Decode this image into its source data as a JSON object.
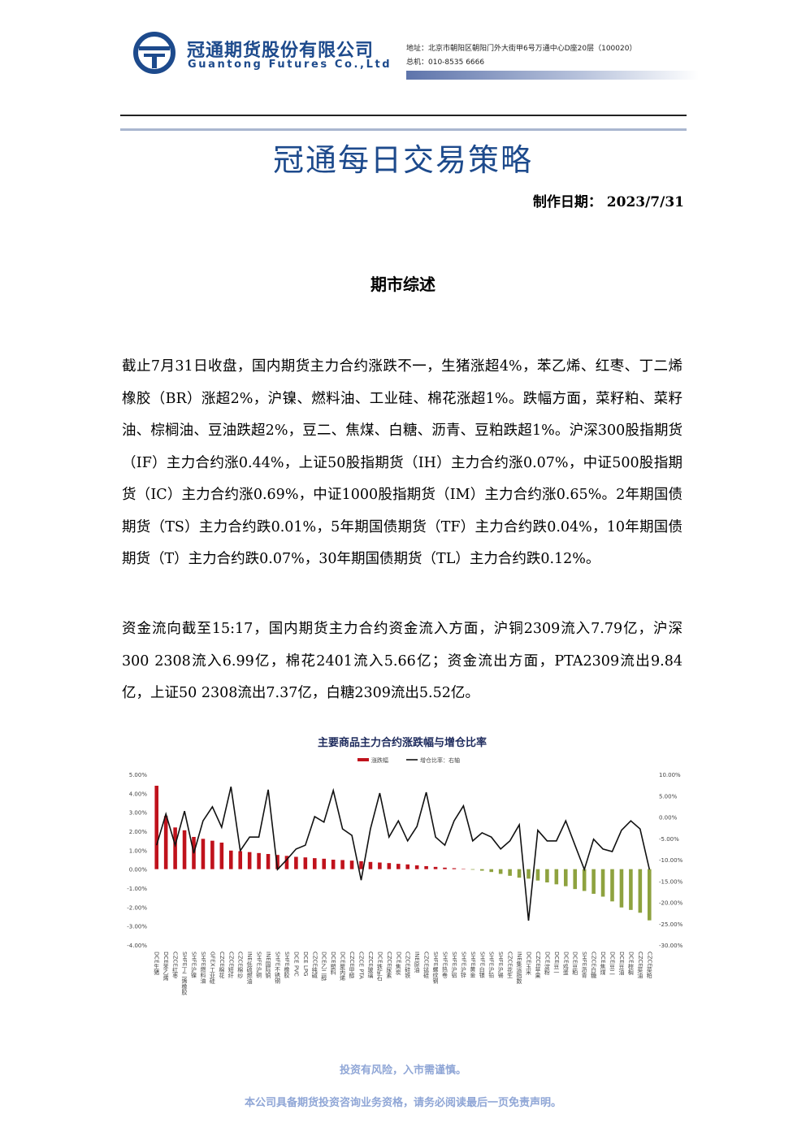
{
  "header": {
    "company_cn": "冠通期货股份有限公司",
    "company_en": "Guantong Futures Co.,Ltd",
    "address": "地址：北京市朝阳区朝阳门外大街甲6号万通中心D座20层（100020）",
    "phone": "总机：010-8535 6666"
  },
  "title": "冠通每日交易策略",
  "date_label": "制作日期：",
  "date": "2023/7/31",
  "section": "期市综述",
  "paragraphs": [
    "截止7月31日收盘，国内期货主力合约涨跌不一，生猪涨超4%，苯乙烯、红枣、丁二烯橡胶（BR）涨超2%，沪镍、燃料油、工业硅、棉花涨超1%。跌幅方面，菜籽粕、菜籽油、棕榈油、豆油跌超2%，豆二、焦煤、白糖、沥青、豆粕跌超1%。沪深300股指期货（IF）主力合约涨0.44%，上证50股指期货（IH）主力合约涨0.07%，中证500股指期货（IC）主力合约涨0.69%，中证1000股指期货（IM）主力合约涨0.65%。2年期国债期货（TS）主力合约跌0.01%，5年期国债期货（TF）主力合约跌0.04%，10年期国债期货（T）主力合约跌0.07%，30年期国债期货（TL）主力合约跌0.12%。",
    "资金流向截至15:17，国内期货主力合约资金流入方面，沪铜2309流入7.79亿，沪深300 2308流入6.99亿，棉花2401流入5.66亿；资金流出方面，PTA2309流出9.84亿，上证50 2308流出7.37亿，白糖2309流出5.52亿。"
  ],
  "chart_data": {
    "type": "bar-line",
    "title": "主要商品主力合约涨跌幅与增仓比率",
    "categories": [
      "DCE生猪",
      "DCE苯乙烯",
      "CZCE红枣",
      "SHFE丁二烯橡胶",
      "SHFE沪镍",
      "SHFE燃料油",
      "GFEX工业硅",
      "CZCE棉花",
      "CZCE短纤",
      "CZCE棉纱",
      "INE低硫燃油",
      "SHFE沪铜",
      "INE国际铜",
      "SHFE不锈钢",
      "SHFE橡胶",
      "DCE PVC",
      "DCE LPG",
      "CZCE纯碱",
      "DCE乙二醇",
      "DCE塑料",
      "DCE聚丙烯",
      "CZCE甲醇",
      "CZCE PTA",
      "CZCE玻璃",
      "DCE铁矿石",
      "CZCE尿素",
      "DCE焦炭",
      "CZCE硅铁",
      "INE原油",
      "CZCE锰硅",
      "SHFE螺纹钢",
      "SHFE热卷",
      "SHFE沪铝",
      "SHFE沪锌",
      "SHFE黄金",
      "SHFE白银",
      "SHFE沪铅",
      "SHFE沪锡",
      "CZCE花生",
      "INE集运指数",
      "DCE玉米",
      "CZCE苹果",
      "DCE淀粉",
      "DCE豆一",
      "DCE鸡蛋",
      "DCE豆粕",
      "SHFE沥青",
      "CZCE白糖",
      "DCE焦煤",
      "DCE豆二",
      "DCE豆油",
      "DCE棕榈",
      "CZCE菜油",
      "CZCE菜粕"
    ],
    "series": [
      {
        "name": "涨跌幅",
        "kind": "bar",
        "color": "#c0121c",
        "negative_color": "#8ea23f",
        "values": [
          4.4,
          2.8,
          2.2,
          2.05,
          1.7,
          1.6,
          1.5,
          1.4,
          0.98,
          0.95,
          0.9,
          0.85,
          0.8,
          0.75,
          0.7,
          0.65,
          0.62,
          0.58,
          0.55,
          0.5,
          0.48,
          0.45,
          0.42,
          0.38,
          0.35,
          0.32,
          0.28,
          0.25,
          0.2,
          0.16,
          0.12,
          0.08,
          0.05,
          0.02,
          -0.03,
          -0.08,
          -0.15,
          -0.25,
          -0.35,
          -0.45,
          -0.5,
          -0.6,
          -0.7,
          -0.8,
          -0.9,
          -1.05,
          -1.15,
          -1.3,
          -1.45,
          -1.7,
          -2.02,
          -2.15,
          -2.3,
          -2.7
        ]
      },
      {
        "name": "增仓比率：右轴",
        "kind": "line",
        "axis": "y2",
        "color": "#111111",
        "values": [
          -6.6,
          0.7,
          -6.6,
          1.4,
          -8.5,
          -0.9,
          2.4,
          -2.4,
          7.1,
          -7.9,
          -4.7,
          -4.7,
          6.4,
          -12.3,
          -10,
          -7.5,
          -6.6,
          0.1,
          -1.2,
          6.2,
          -2.8,
          -4.3,
          -14.8,
          -2.8,
          5.6,
          -4.7,
          -0.9,
          -5.6,
          -2.2,
          5.8,
          -4.7,
          -6.6,
          -0.9,
          2.6,
          -5.6,
          -3.7,
          -4.7,
          -7.5,
          -5.6,
          -1.8,
          -24.3,
          -3.1,
          -5.6,
          -5.6,
          -0.9,
          -6.6,
          -12.3,
          -5.2,
          -7.5,
          -8.1,
          -3.1,
          -0.9,
          -2.8,
          -12.3
        ]
      }
    ],
    "ylim": [
      -4,
      5
    ],
    "yticks": [
      {
        "value": 5,
        "label": "5.00%"
      },
      {
        "value": 4,
        "label": "4.00%"
      },
      {
        "value": 3,
        "label": "3.00%"
      },
      {
        "value": 2,
        "label": "2.00%"
      },
      {
        "value": 1,
        "label": "1.00%"
      },
      {
        "value": 0,
        "label": "0.00%"
      },
      {
        "value": -1,
        "label": "-1.00%"
      },
      {
        "value": -2,
        "label": "-2.00%"
      },
      {
        "value": -3,
        "label": "-3.00%"
      },
      {
        "value": -4,
        "label": "-4.00%"
      }
    ],
    "y2lim": [
      -30,
      10
    ],
    "y2ticks": [
      {
        "value": 10,
        "label": "10.00%"
      },
      {
        "value": 5,
        "label": "5.00%"
      },
      {
        "value": 0,
        "label": "0.00%"
      },
      {
        "value": -5,
        "label": "-5.00%"
      },
      {
        "value": -10,
        "label": "-10.00%"
      },
      {
        "value": -15,
        "label": "-15.00%"
      },
      {
        "value": -20,
        "label": "-20.00%"
      },
      {
        "value": -25,
        "label": "-25.00%"
      },
      {
        "value": -30,
        "label": "-30.00%"
      }
    ],
    "legend": "top"
  },
  "footer": [
    "投资有风险，入市需谨慎。",
    "本公司具备期货投资咨询业务资格，请务必阅读最后一页免责声明。"
  ]
}
